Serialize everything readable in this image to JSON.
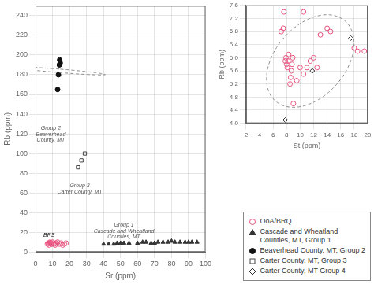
{
  "chart_data": [
    {
      "type": "scatter",
      "xlabel": "Sr (ppm)",
      "ylabel": "Rb (ppm)",
      "xlim": [
        0,
        100
      ],
      "ylim": [
        0,
        250
      ],
      "xticks": [
        0,
        10,
        20,
        30,
        40,
        50,
        60,
        70,
        80,
        90,
        100
      ],
      "yticks": [
        0,
        20,
        40,
        60,
        80,
        100,
        120,
        140,
        160,
        180,
        200,
        220,
        240
      ],
      "grid": true,
      "legend": "lower right",
      "series": [
        {
          "color": "#e75480",
          "marker": "circle_open",
          "x": [
            7,
            7.5,
            8,
            8.2,
            8.5,
            9,
            9.2,
            9.5,
            10,
            10.5,
            11,
            11.5,
            12,
            13,
            14,
            15,
            16,
            17,
            18
          ],
          "values": [
            8,
            9,
            7,
            9,
            10,
            9,
            8,
            8,
            10,
            9,
            8,
            7,
            9,
            10,
            8,
            9,
            7,
            8,
            9
          ]
        },
        {
          "name": "Cascade and Wheatland\nCounties, MT, Group 1",
          "color": "#333333",
          "marker": "triangle",
          "x": [
            40,
            43,
            46,
            48,
            50,
            52,
            55,
            60,
            63,
            65,
            68,
            70,
            72,
            75,
            78,
            80,
            82,
            85,
            88,
            90,
            92,
            95
          ],
          "values": [
            8,
            8,
            8,
            9,
            9,
            9,
            9,
            9,
            10,
            10,
            9,
            9,
            10,
            10,
            10,
            11,
            10,
            10,
            10,
            10,
            10,
            10
          ]
        },
        {
          "name": "Beaverhead County, MT, Group 2",
          "color": "#111111",
          "marker": "circle",
          "x": [
            13.0,
            13.5,
            14.0,
            14.2,
            14.5
          ],
          "values": [
            165,
            180,
            190,
            195,
            192
          ]
        },
        {
          "name": "Carter County, MT, Group 3",
          "color": "#444444",
          "marker": "square_open",
          "x": [
            25,
            27,
            29
          ],
          "values": [
            86,
            93,
            100
          ]
        }
      ],
      "ellipses": [
        {
          "center_x": 13.8,
          "center_y": 184,
          "width": 3.5,
          "height": 55,
          "angle": 82,
          "color": "#888888",
          "line_style": "dashed"
        }
      ],
      "annotations": [
        {
          "text": "Group 2\nBeaverhead\nCounty, MT",
          "x": 9,
          "y": 128,
          "color": "#555555"
        },
        {
          "text": "Group 3\nCarter County, MT",
          "x": 26,
          "y": 70,
          "color": "#555555"
        },
        {
          "text": "Group 1\nCascade and Wheatland\nCounties, MT",
          "x": 52,
          "y": 30,
          "color": "#555555"
        },
        {
          "text": "BRS",
          "x": 8,
          "y": 20,
          "color": "#000000"
        }
      ]
    },
    {
      "type": "scatter",
      "xlabel": "St (ppm)",
      "ylabel": "Rb (ppm)",
      "xlim": [
        2,
        20
      ],
      "ylim": [
        4.0,
        7.6
      ],
      "xticks": [
        2,
        4,
        6,
        8,
        10,
        12,
        14,
        16,
        18,
        20
      ],
      "yticks": [
        {
          "value": 4.0,
          "label": "4.0"
        },
        4.4,
        4.8,
        5.2,
        5.6,
        {
          "value": 6.0,
          "label": "6.0"
        },
        6.4,
        6.8,
        7.2,
        7.6
      ],
      "grid": true,
      "series": [
        {
          "name": "OoA/BRQ",
          "color": "#e75480",
          "marker": "circle_open",
          "x": [
            7.2,
            7.5,
            7.6,
            7.8,
            7.9,
            8.0,
            8.1,
            8.2,
            8.3,
            8.5,
            8.6,
            8.7,
            8.8,
            8.9,
            9.0,
            9.5,
            10.0,
            10.5,
            11.0,
            11.5,
            12.0,
            12.5,
            13.0,
            14.0,
            14.5,
            18.0,
            18.5,
            19.5,
            10.5
          ],
          "values": [
            6.8,
            6.9,
            7.4,
            5.9,
            6.0,
            5.8,
            5.7,
            5.9,
            6.1,
            5.2,
            5.4,
            5.6,
            5.8,
            6.0,
            4.6,
            5.3,
            5.7,
            5.5,
            5.7,
            5.9,
            6.0,
            5.7,
            6.7,
            6.9,
            6.8,
            6.3,
            6.2,
            6.2,
            7.4
          ]
        },
        {
          "name": "Carter County, MT Group 4",
          "color": "#333333",
          "marker": "diamond_open",
          "x": [
            7.8,
            11.8,
            17.5
          ],
          "values": [
            4.1,
            5.6,
            6.6
          ]
        }
      ],
      "ellipses": [
        {
          "center_x": 11.5,
          "center_y": 5.9,
          "width": 13,
          "height": 2.6,
          "angle": 5,
          "color": "#888888",
          "line_style": "dashed"
        }
      ]
    }
  ]
}
